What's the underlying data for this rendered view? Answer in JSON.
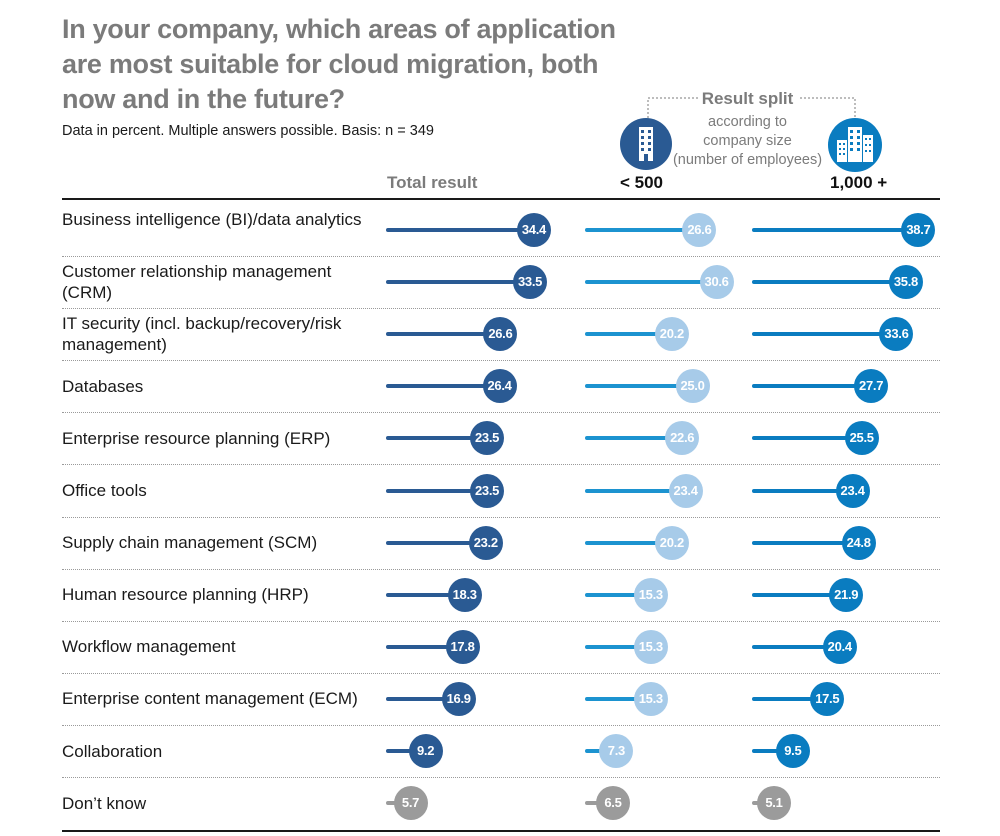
{
  "title": "In your company, which areas of application are most suitable for cloud migration, both now and in the future?",
  "subtitle": "Data in percent. Multiple answers possible. Basis: n = 349",
  "split": {
    "title": "Result split",
    "subtitle_lines": [
      "according to",
      "company size",
      "(number of employees)"
    ]
  },
  "columns": {
    "total": "Total result",
    "small": "< 500",
    "large": "1,000 +"
  },
  "colors": {
    "total": "#2a5a93",
    "small": "#a7cbe9",
    "small_bar": "#1c93d0",
    "large": "#0a7cc0",
    "dont_know": "#9b9b9b"
  },
  "chart_data": {
    "type": "bar",
    "title": "In your company, which areas of application are most suitable for cloud migration, both now and in the future?",
    "subtitle": "Data in percent. Multiple answers possible. Basis: n = 349",
    "categories": [
      "Business intelligence (BI)/data analytics",
      "Customer relationship management (CRM)",
      "IT security (incl. backup/recovery/risk management)",
      "Databases",
      "Enterprise resource planning (ERP)",
      "Office tools",
      "Supply chain management (SCM)",
      "Human resource planning (HRP)",
      "Workflow management",
      "Enterprise content management (ECM)",
      "Collaboration",
      "Don’t know"
    ],
    "series": [
      {
        "name": "Total result",
        "values": [
          34.4,
          33.5,
          26.6,
          26.4,
          23.5,
          23.5,
          23.2,
          18.3,
          17.8,
          16.9,
          9.2,
          5.7
        ]
      },
      {
        "name": "< 500",
        "values": [
          26.6,
          30.6,
          20.2,
          25.0,
          22.6,
          23.4,
          20.2,
          15.3,
          15.3,
          15.3,
          7.3,
          6.5
        ]
      },
      {
        "name": "1,000 +",
        "values": [
          38.7,
          35.8,
          33.6,
          27.7,
          25.5,
          23.4,
          24.8,
          21.9,
          20.4,
          17.5,
          9.5,
          5.1
        ]
      }
    ],
    "xlim": [
      0,
      40
    ],
    "grid": false,
    "legend": "top"
  }
}
